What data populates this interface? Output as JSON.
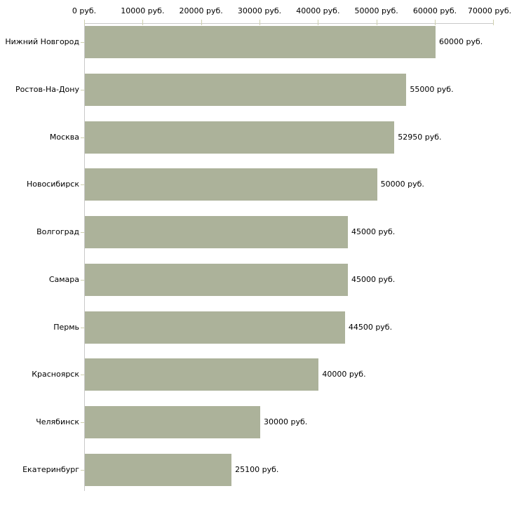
{
  "chart_data": {
    "type": "bar",
    "orientation": "horizontal",
    "title": "",
    "categories": [
      "Нижний Новгород",
      "Ростов-На-Дону",
      "Москва",
      "Новосибирск",
      "Волгоград",
      "Самара",
      "Пермь",
      "Красноярск",
      "Челябинск",
      "Екатеринбург"
    ],
    "values": [
      60000,
      55000,
      52950,
      50000,
      45000,
      45000,
      44500,
      40000,
      30000,
      25100
    ],
    "value_labels": [
      "60000 руб.",
      "55000 руб.",
      "52950 руб.",
      "50000 руб.",
      "45000 руб.",
      "45000 руб.",
      "44500 руб.",
      "40000 руб.",
      "30000 руб.",
      "25100 руб."
    ],
    "x_axis": {
      "position": "top",
      "min": 0,
      "max": 70000,
      "tick_values": [
        0,
        10000,
        20000,
        30000,
        40000,
        50000,
        60000,
        70000
      ],
      "tick_labels": [
        "0 руб.",
        "10000 руб.",
        "20000 руб.",
        "30000 руб.",
        "40000 руб.",
        "50000 руб.",
        "60000 руб.",
        "70000 руб."
      ]
    },
    "grid": false,
    "legend": false,
    "colors": {
      "bar": "#ACB29A",
      "axis_line": "#C8C8C8",
      "tick_mark": "#CDCFAD",
      "text": "#000000",
      "background": "#FFFFFF"
    }
  }
}
